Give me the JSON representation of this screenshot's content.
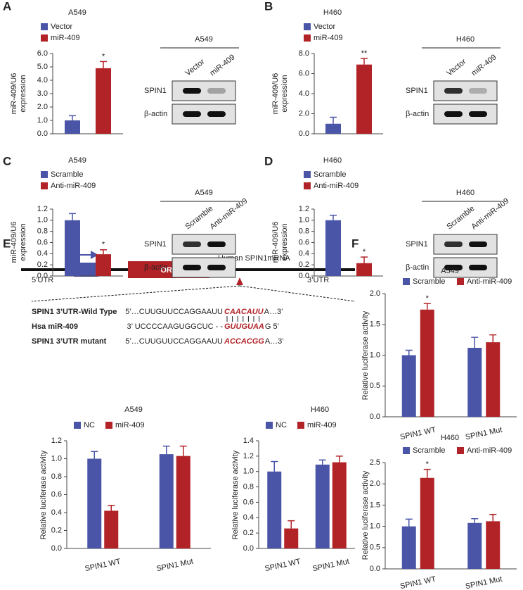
{
  "panels": [
    "A",
    "B",
    "C",
    "D",
    "E",
    "F"
  ],
  "chart_data": [
    {
      "type": "bar",
      "title": "A549",
      "y_label": [
        "miR-409/U6",
        "expression"
      ],
      "categories": [
        null
      ],
      "series": [
        {
          "name": "Vector",
          "color": "#4a55a8",
          "values": [
            1.0
          ],
          "errors": [
            0.35
          ]
        },
        {
          "name": "miR-409",
          "color": "#b22328",
          "values": [
            4.9
          ],
          "errors": [
            0.5
          ],
          "significance": [
            "*"
          ]
        }
      ],
      "ylim": [
        0,
        6
      ],
      "yticks": [
        {
          "value": 0,
          "label": "0.0"
        },
        {
          "value": 1,
          "label": "1.0"
        },
        {
          "value": 2,
          "label": "2.0"
        },
        {
          "value": 3,
          "label": "3.0"
        },
        {
          "value": 4,
          "label": "4.0"
        },
        {
          "value": 5,
          "label": "5.0"
        },
        {
          "value": 6,
          "label": "6.0"
        }
      ],
      "legend": "top-left"
    },
    {
      "type": "bar",
      "title": "H460",
      "y_label": [
        "miR-409/U6",
        "expression"
      ],
      "categories": [
        null
      ],
      "series": [
        {
          "name": "Vector",
          "color": "#4a55a8",
          "values": [
            1.0
          ],
          "errors": [
            0.65
          ]
        },
        {
          "name": "miR-409",
          "color": "#b22328",
          "values": [
            6.9
          ],
          "errors": [
            0.6
          ],
          "significance": [
            "**"
          ]
        }
      ],
      "ylim": [
        0,
        8
      ],
      "yticks": [
        {
          "value": 0,
          "label": "0.0"
        },
        {
          "value": 2,
          "label": "2.0"
        },
        {
          "value": 4,
          "label": "4.0"
        },
        {
          "value": 6,
          "label": "6.0"
        },
        {
          "value": 8,
          "label": "8.0"
        }
      ],
      "legend": "top-left"
    },
    {
      "type": "bar",
      "title": "A549",
      "y_label": [
        "miR-409/U6",
        "expression"
      ],
      "categories": [
        null
      ],
      "series": [
        {
          "name": "Scramble",
          "color": "#4a55a8",
          "values": [
            1.0
          ],
          "errors": [
            0.12
          ]
        },
        {
          "name": "Anti-miR-409",
          "color": "#b22328",
          "values": [
            0.39
          ],
          "errors": [
            0.08
          ],
          "significance": [
            "*"
          ]
        }
      ],
      "ylim": [
        0,
        1.2
      ],
      "yticks": [
        {
          "value": 0,
          "label": "0.0"
        },
        0.2,
        0.4,
        0.6,
        0.8,
        {
          "value": 1,
          "label": "1.0"
        },
        1.2
      ],
      "legend": "top-left"
    },
    {
      "type": "bar",
      "title": "H460",
      "y_label": [
        "miR-409/U6",
        "expression"
      ],
      "categories": [
        null
      ],
      "series": [
        {
          "name": "Scramble",
          "color": "#4a55a8",
          "values": [
            1.0
          ],
          "errors": [
            0.09
          ]
        },
        {
          "name": "Anti-miR-409",
          "color": "#b22328",
          "values": [
            0.23
          ],
          "errors": [
            0.11
          ],
          "significance": [
            "*"
          ]
        }
      ],
      "ylim": [
        0,
        1.2
      ],
      "yticks": [
        {
          "value": 0,
          "label": "0.0"
        },
        0.2,
        0.4,
        0.6,
        0.8,
        {
          "value": 1,
          "label": "1.0"
        },
        1.2
      ],
      "legend": "top-left"
    },
    {
      "type": "bar",
      "title": "A549",
      "y_label": "Relative luciferase activity",
      "categories": [
        "SPIN1 WT",
        "SPIN1 Mut"
      ],
      "series": [
        {
          "name": "NC",
          "color": "#4a55a8",
          "values": [
            1.0,
            1.05
          ],
          "errors": [
            0.08,
            0.09
          ]
        },
        {
          "name": "miR-409",
          "color": "#b22328",
          "values": [
            0.42,
            1.03
          ],
          "errors": [
            0.06,
            0.11
          ]
        }
      ],
      "ylim": [
        0,
        1.2
      ],
      "yticks": [
        {
          "value": 0,
          "label": "0.0"
        },
        0.2,
        0.4,
        0.6,
        0.8,
        {
          "value": 1,
          "label": "1.0"
        },
        1.2
      ],
      "legend": "top"
    },
    {
      "type": "bar",
      "title": "H460",
      "y_label": "Relative luciferase activity",
      "categories": [
        "SPIN1 WT",
        "SPIN1 Mut"
      ],
      "series": [
        {
          "name": "NC",
          "color": "#4a55a8",
          "values": [
            1.0,
            1.09
          ],
          "errors": [
            0.13,
            0.06
          ]
        },
        {
          "name": "miR-409",
          "color": "#b22328",
          "values": [
            0.26,
            1.12
          ],
          "errors": [
            0.1,
            0.08
          ]
        }
      ],
      "ylim": [
        0,
        1.4
      ],
      "yticks": [
        {
          "value": 0,
          "label": "0.0"
        },
        0.2,
        0.4,
        0.6,
        0.8,
        {
          "value": 1,
          "label": "1.0"
        },
        1.2,
        1.4
      ],
      "legend": "top"
    },
    {
      "type": "bar",
      "title": "A549",
      "y_label": "Relative luciferase activity",
      "categories": [
        "SPIN1 WT",
        "SPIN1 Mut"
      ],
      "series": [
        {
          "name": "Scramble",
          "color": "#4a55a8",
          "values": [
            1.0,
            1.12
          ],
          "errors": [
            0.08,
            0.17
          ]
        },
        {
          "name": "Anti-miR-409",
          "color": "#b22328",
          "values": [
            1.74,
            1.21
          ],
          "errors": [
            0.1,
            0.12
          ],
          "significance": [
            "*",
            null
          ]
        }
      ],
      "ylim": [
        0,
        2
      ],
      "yticks": [
        {
          "value": 0,
          "label": "0.0"
        },
        0.5,
        {
          "value": 1,
          "label": "1.0"
        },
        1.5,
        {
          "value": 2,
          "label": "2.0"
        }
      ],
      "legend": "top"
    },
    {
      "type": "bar",
      "title": "H460",
      "y_label": "Relative luciferase activity",
      "categories": [
        "SPIN1 WT",
        "SPIN1 Mut"
      ],
      "series": [
        {
          "name": "Scramble",
          "color": "#4a55a8",
          "values": [
            1.0,
            1.08
          ],
          "errors": [
            0.17,
            0.1
          ]
        },
        {
          "name": "Anti-miR-409",
          "color": "#b22328",
          "values": [
            2.14,
            1.12
          ],
          "errors": [
            0.2,
            0.16
          ],
          "significance": [
            "*",
            null
          ]
        }
      ],
      "ylim": [
        0,
        2.5
      ],
      "yticks": [
        {
          "value": 0,
          "label": "0.0"
        },
        0.5,
        {
          "value": 1,
          "label": "1.0"
        },
        1.5,
        {
          "value": 2,
          "label": "2.0"
        },
        2.5
      ],
      "legend": "top"
    }
  ],
  "blots": [
    {
      "cell": "A549",
      "lanes": [
        "Vector",
        "miR-409"
      ],
      "rows": [
        "SPIN1",
        "β-actin"
      ]
    },
    {
      "cell": "H460",
      "lanes": [
        "Vector",
        "miR-409"
      ],
      "rows": [
        "SPIN1",
        "β-actin"
      ]
    },
    {
      "cell": "A549",
      "lanes": [
        "Scramble",
        "Anti-miR-409"
      ],
      "rows": [
        "SPIN1",
        "β-actin"
      ]
    },
    {
      "cell": "H460",
      "lanes": [
        "Scramble",
        "Anti-miR-409"
      ],
      "rows": [
        "SPIN1",
        "β-actin"
      ]
    }
  ],
  "diagram": {
    "orf": "ORF",
    "mrna": "Human SPIN1mRNA",
    "utr5": "5’UTR",
    "utr3": "3’UTR",
    "sequences": [
      {
        "label": "SPIN1 3’UTR-Wild Type",
        "left": "5’…CUUGUUCCAGGAAUU",
        "site": "CAACAUU",
        "right": "A…3’"
      },
      {
        "label": "Hsa  miR-409",
        "left": "3’  UCCCCAAGUGGCUC - -",
        "site": "GUUGUAA",
        "right": "G   5’"
      },
      {
        "label": "SPIN1 3’UTR mutant",
        "left": "5’…CUUGUUCCAGGAAUU",
        "site": "ACCACGG",
        "right": "A…3’"
      }
    ]
  }
}
